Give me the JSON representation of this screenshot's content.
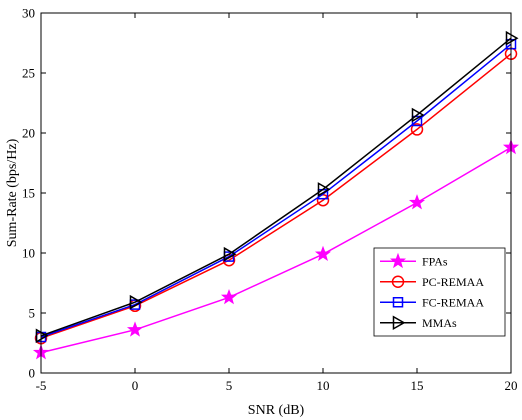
{
  "chart_data": {
    "type": "line",
    "title": "",
    "xlabel": "SNR (dB)",
    "ylabel": "Sum-Rate (bps/Hz)",
    "x": [
      -5,
      0,
      5,
      10,
      15,
      20
    ],
    "xlim": [
      -5,
      20
    ],
    "ylim": [
      0,
      30
    ],
    "xticks": [
      -5,
      0,
      5,
      10,
      15,
      20
    ],
    "yticks": [
      0,
      5,
      10,
      15,
      20,
      25,
      30
    ],
    "grid": false,
    "legend_position": "lower-right",
    "series": [
      {
        "name": "FPAs",
        "color": "#ff00ff",
        "marker": "star",
        "values": [
          1.7,
          3.6,
          6.3,
          9.9,
          14.2,
          18.8
        ]
      },
      {
        "name": "PC-REMAA",
        "color": "#ff0000",
        "marker": "circle",
        "values": [
          2.9,
          5.6,
          9.4,
          14.4,
          20.3,
          26.6
        ]
      },
      {
        "name": "FC-REMAA",
        "color": "#0000ff",
        "marker": "square",
        "values": [
          3.0,
          5.7,
          9.7,
          14.9,
          21.0,
          27.4
        ]
      },
      {
        "name": "MMAs",
        "color": "#000000",
        "marker": "triangle-right",
        "values": [
          3.1,
          5.9,
          9.9,
          15.3,
          21.5,
          27.9
        ]
      }
    ]
  }
}
